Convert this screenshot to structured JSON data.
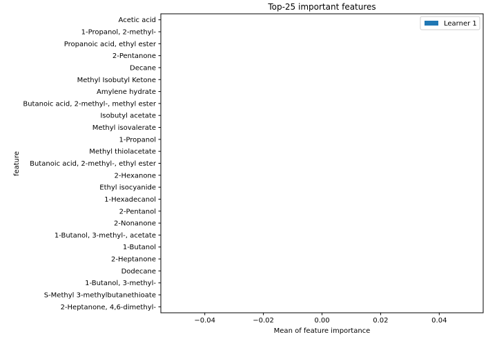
{
  "chart_data": {
    "type": "bar",
    "orientation": "horizontal",
    "title": "Top-25 important features",
    "xlabel": "Mean of feature importance",
    "ylabel": "feature",
    "categories": [
      "Acetic acid",
      "1-Propanol, 2-methyl-",
      "Propanoic acid, ethyl ester",
      "2-Pentanone",
      "Decane",
      "Methyl Isobutyl Ketone",
      "Amylene hydrate",
      "Butanoic acid, 2-methyl-, methyl ester",
      "Isobutyl acetate",
      "Methyl isovalerate",
      "1-Propanol",
      "Methyl thiolacetate",
      "Butanoic acid, 2-methyl-, ethyl ester",
      "2-Hexanone",
      "Ethyl isocyanide",
      "1-Hexadecanol",
      "2-Pentanol",
      "2-Nonanone ",
      "1-Butanol, 3-methyl-, acetate",
      "1-Butanol",
      "2-Heptanone",
      "Dodecane",
      "1-Butanol, 3-methyl-",
      "S-Methyl 3-methylbutanethioate",
      "2-Heptanone, 4,6-dimethyl-"
    ],
    "series": [
      {
        "name": "Learner 1",
        "color": "#1f77b4",
        "values": [
          0,
          0,
          0,
          0,
          0,
          0,
          0,
          0,
          0,
          0,
          0,
          0,
          0,
          0,
          0,
          0,
          0,
          0,
          0,
          0,
          0,
          0,
          0,
          0,
          0
        ]
      }
    ],
    "xlim": [
      -0.055,
      0.055
    ],
    "xticks": [
      -0.04,
      -0.02,
      0.0,
      0.02,
      0.04
    ],
    "xtick_labels": [
      "−0.04",
      "−0.02",
      "0.00",
      "0.02",
      "0.04"
    ],
    "grid": false,
    "legend_position": "top-right"
  }
}
